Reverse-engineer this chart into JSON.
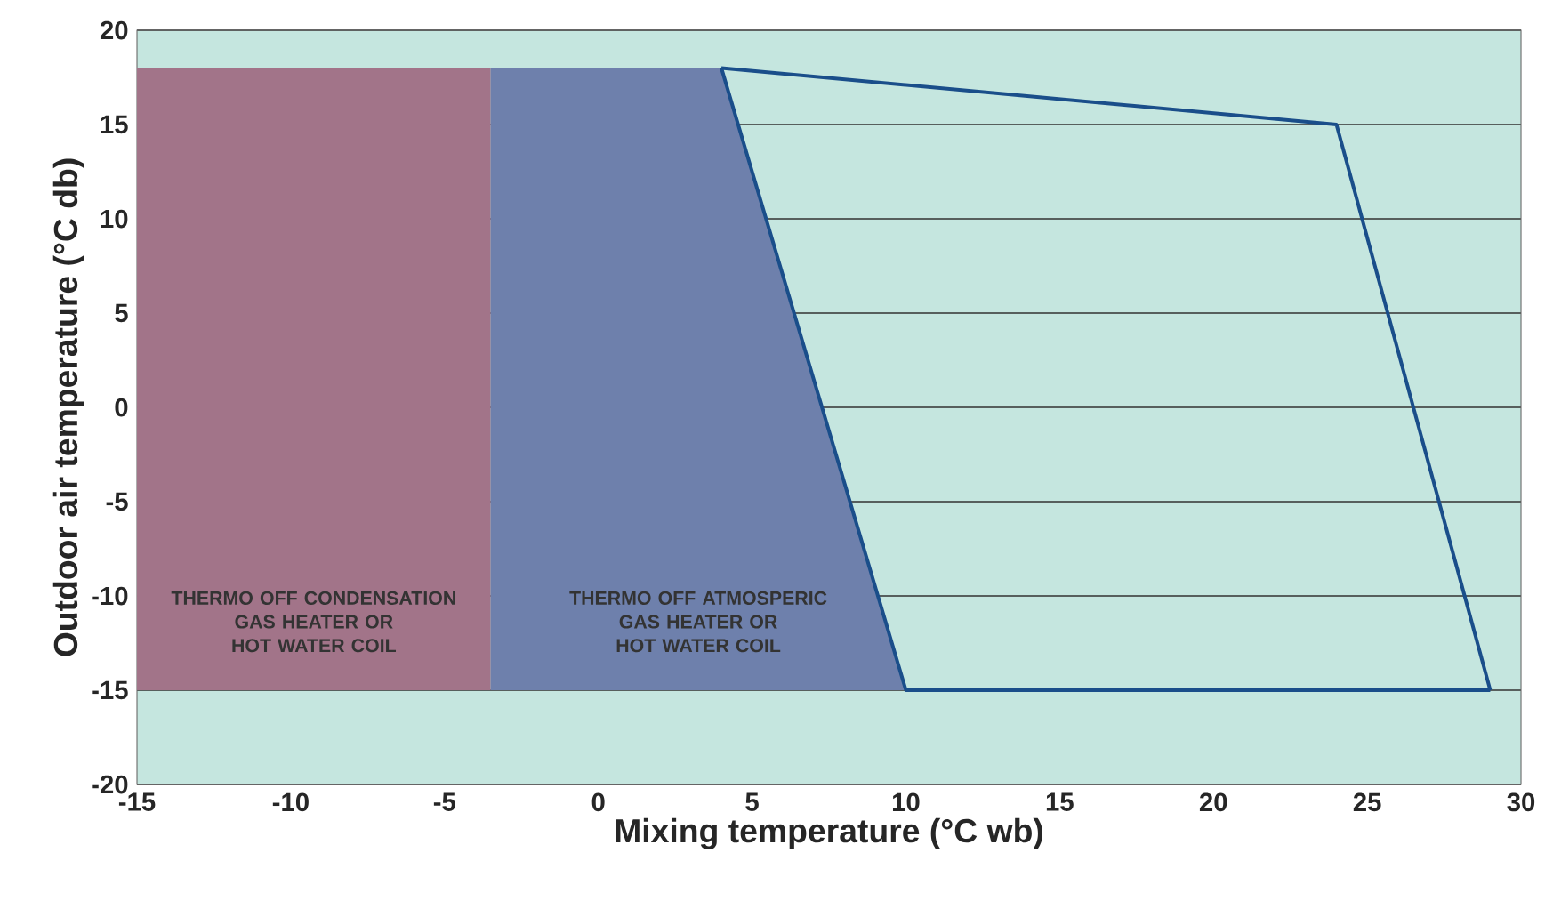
{
  "chart_data": {
    "type": "area",
    "xlabel": "Mixing temperature (°C wb)",
    "ylabel": "Outdoor air temperature (°C db)",
    "xlim": [
      -15,
      30
    ],
    "xticks": [
      -15,
      -10,
      -5,
      0,
      5,
      10,
      15,
      20,
      25,
      30
    ],
    "ylim": [
      -20,
      20
    ],
    "yticks": [
      -20,
      -15,
      -10,
      -5,
      0,
      5,
      10,
      15,
      20
    ],
    "grid": "y",
    "series": [
      {
        "color": "#a27489",
        "x": [
          -15,
          -3.5,
          -3.5,
          -15
        ],
        "values": [
          18,
          18,
          -15,
          -15
        ]
      },
      {
        "color": "#6e80ac",
        "x": [
          -3.5,
          4,
          10,
          -3.5
        ],
        "values": [
          18,
          18,
          -15,
          -15
        ]
      },
      {
        "type": "line",
        "color": "#1a4e8a",
        "x": [
          4,
          24,
          29
        ],
        "values": [
          18,
          15,
          -15
        ]
      },
      {
        "type": "line",
        "color": "#1a4e8a",
        "x": [
          4,
          10,
          29
        ],
        "values": [
          18,
          -15,
          -15
        ]
      }
    ],
    "annotations": [
      "THERMO OFF CONDENSATION GAS HEATER OR HOT WATER COIL",
      "THERMO OFF ATMOSPERIC GAS HEATER OR HOT WATER COIL"
    ]
  }
}
